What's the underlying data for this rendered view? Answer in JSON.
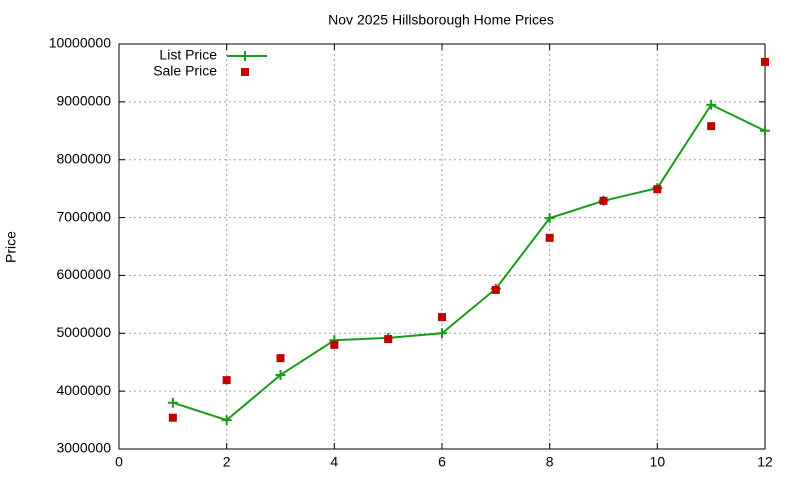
{
  "chart_data": {
    "type": "line",
    "title": "Nov 2025 Hillsborough Home Prices",
    "ylabel": "Price",
    "x": [
      1,
      2,
      3,
      4,
      5,
      6,
      7,
      8,
      9,
      10,
      11,
      12
    ],
    "series": [
      {
        "name": "List Price",
        "color": "#1a9c1a",
        "marker": "plus",
        "line": true,
        "values": [
          3800000,
          3500000,
          4280000,
          4880000,
          4920000,
          5000000,
          5770000,
          6990000,
          7290000,
          7510000,
          8950000,
          8500000
        ]
      },
      {
        "name": "Sale Price",
        "color": "#c00000",
        "marker": "square",
        "line": false,
        "values": [
          3540000,
          4190000,
          4570000,
          4800000,
          4900000,
          5280000,
          5750000,
          6650000,
          7290000,
          7490000,
          8580000,
          9690000
        ]
      }
    ],
    "xlim": [
      0,
      12
    ],
    "xticks": [
      0,
      2,
      4,
      6,
      8,
      10,
      12
    ],
    "ylim": [
      3000000,
      10000000
    ],
    "yticks": [
      3000000,
      4000000,
      5000000,
      6000000,
      7000000,
      8000000,
      9000000,
      10000000
    ],
    "grid": true,
    "legend": "top-left"
  }
}
